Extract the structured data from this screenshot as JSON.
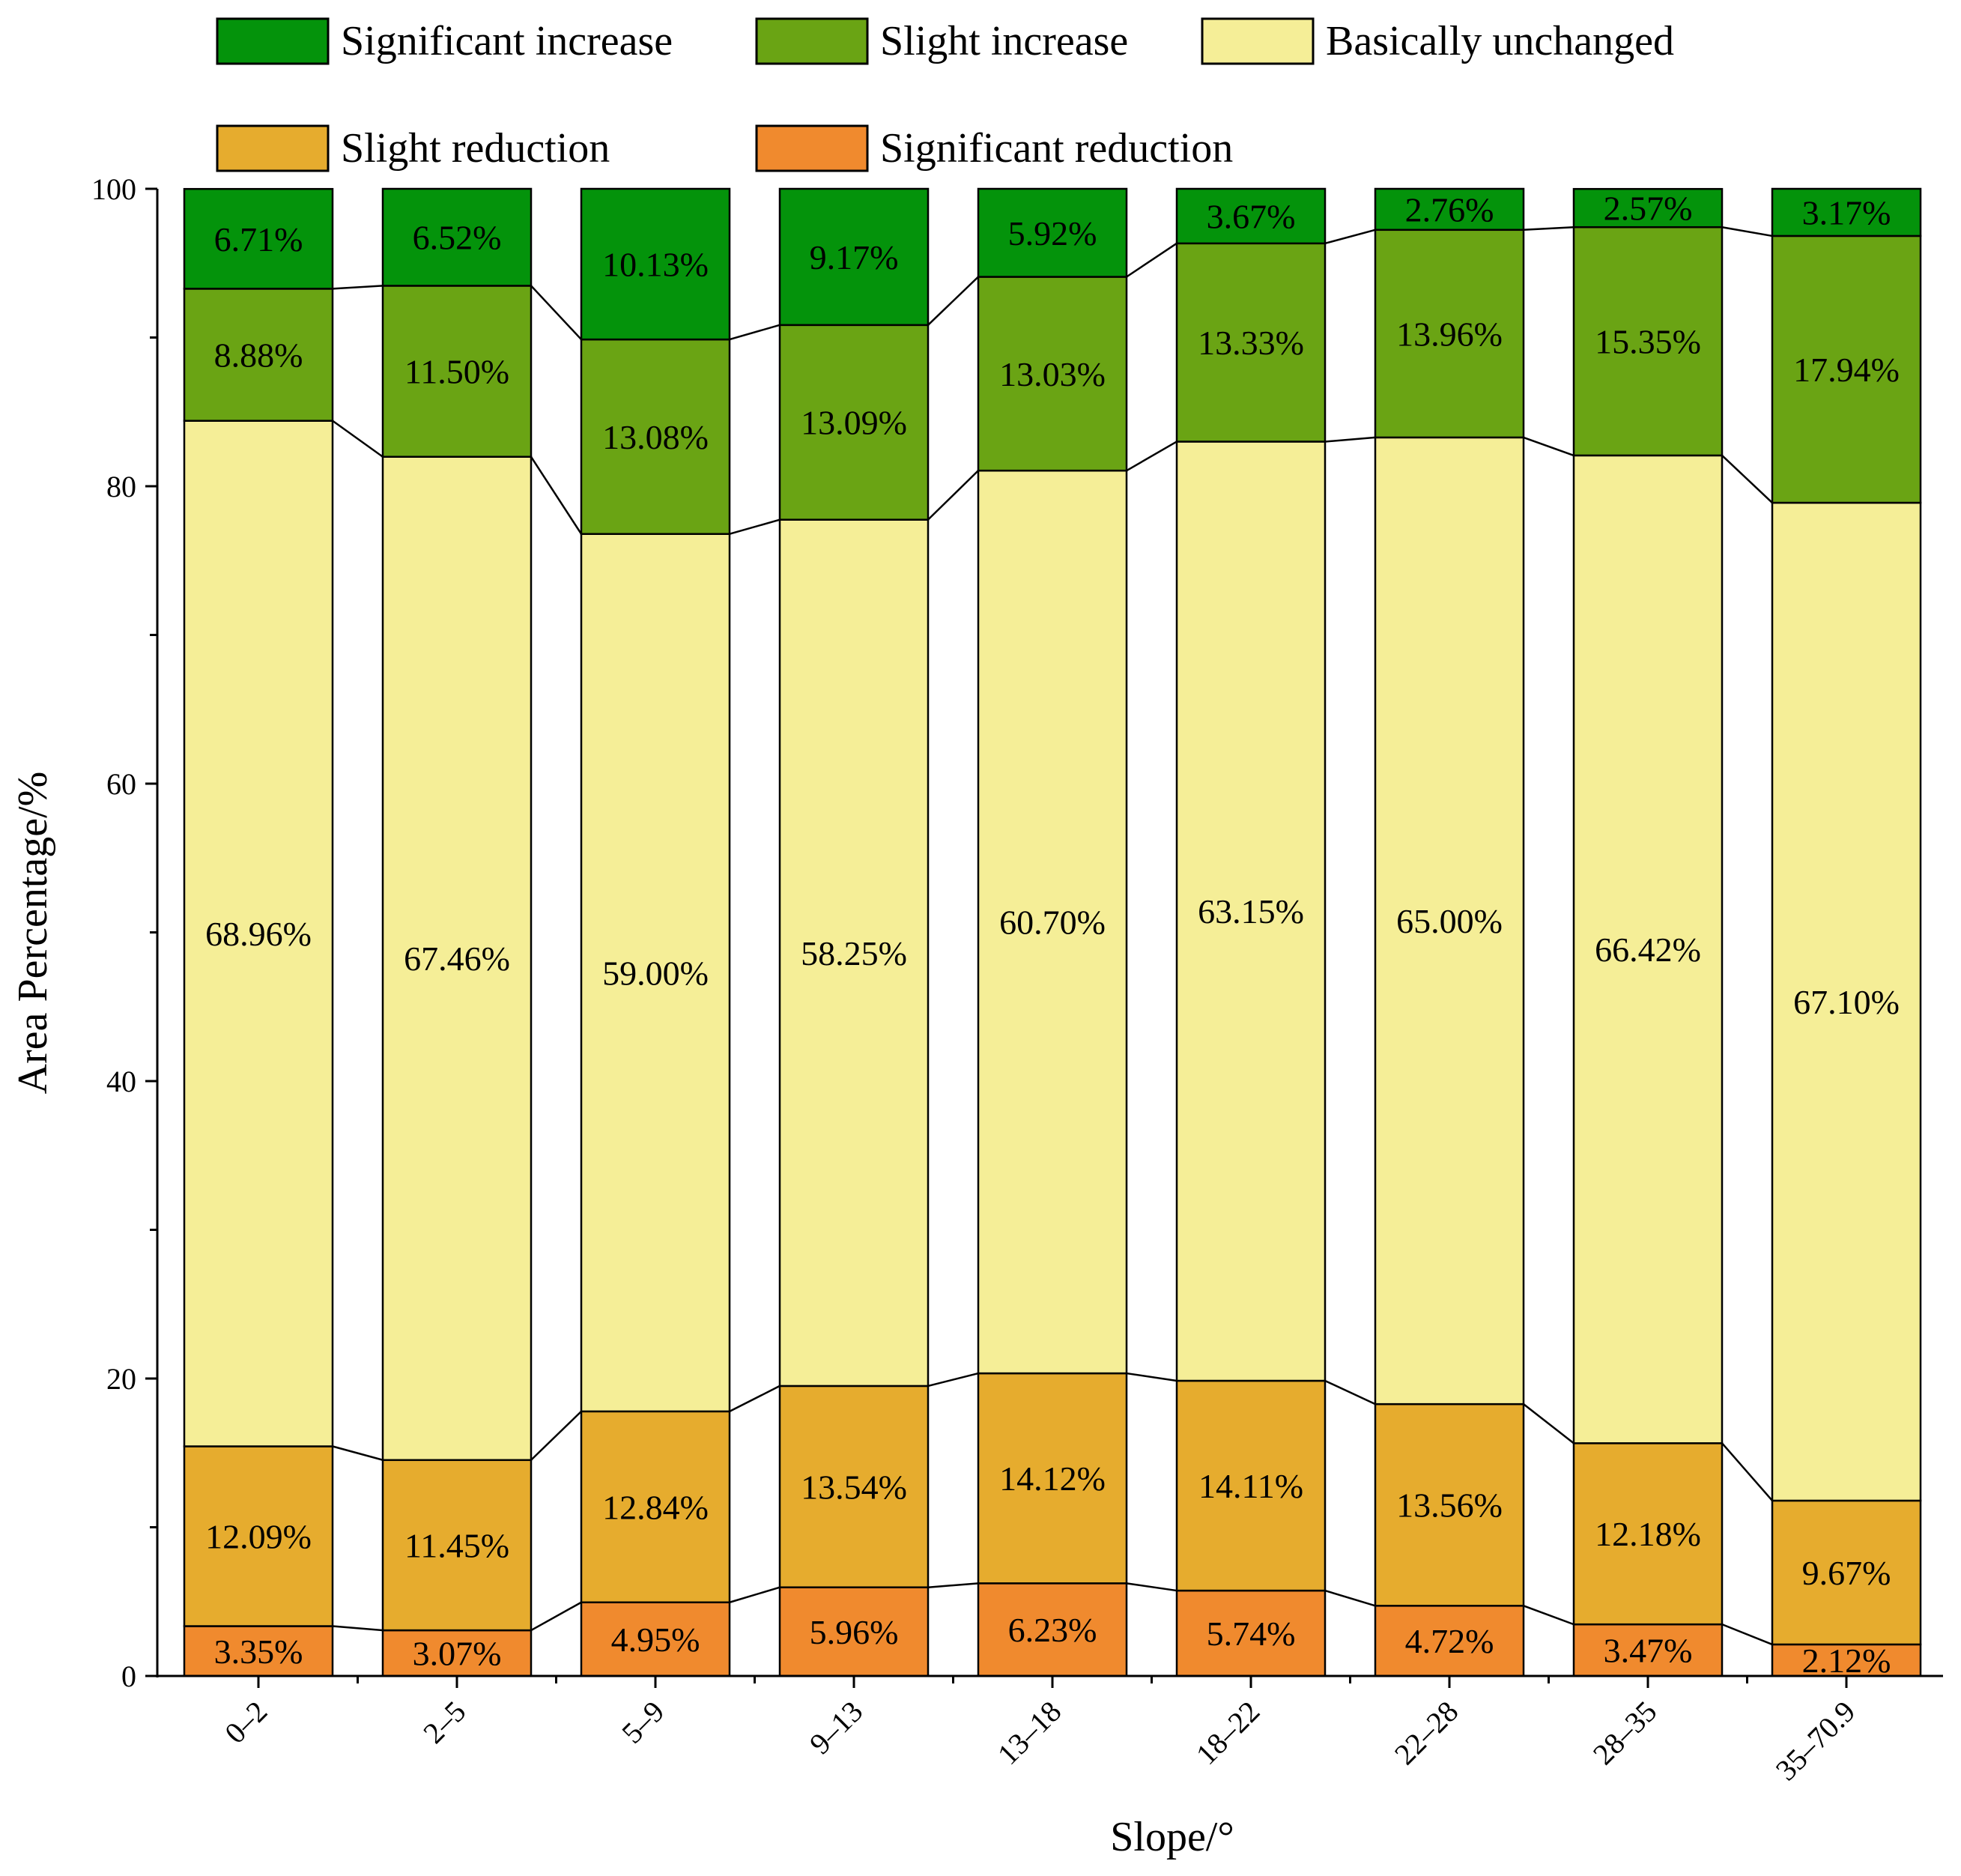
{
  "chart_data": {
    "type": "bar",
    "stacked": true,
    "title": "",
    "xlabel": "Slope/°",
    "ylabel": "Area Percentage/%",
    "ylim": [
      0,
      100
    ],
    "yticks": [
      "0",
      "20",
      "40",
      "60",
      "80",
      "100"
    ],
    "grid": false,
    "legend_position": "top",
    "categories": [
      "0–2",
      "2–5",
      "5–9",
      "9–13",
      "13–18",
      "18–22",
      "22–28",
      "28–35",
      "35–70.9"
    ],
    "series": [
      {
        "name": "Significant reduction",
        "color": "#F08A2E",
        "values": [
          3.35,
          3.07,
          4.95,
          5.96,
          6.23,
          5.74,
          4.72,
          3.47,
          2.12
        ],
        "labels": [
          "3.35%",
          "3.07%",
          "4.95%",
          "5.96%",
          "6.23%",
          "5.74%",
          "4.72%",
          "3.47%",
          "2.12%"
        ]
      },
      {
        "name": "Slight reduction",
        "color": "#E6AC2E",
        "values": [
          12.09,
          11.45,
          12.84,
          13.54,
          14.12,
          14.11,
          13.56,
          12.18,
          9.67
        ],
        "labels": [
          "12.09%",
          "11.45%",
          "12.84%",
          "13.54%",
          "14.12%",
          "14.11%",
          "13.56%",
          "12.18%",
          "9.67%"
        ]
      },
      {
        "name": "Basically unchanged",
        "color": "#F5EE97",
        "values": [
          68.96,
          67.46,
          59.0,
          58.25,
          60.7,
          63.15,
          65.0,
          66.42,
          67.1
        ],
        "labels": [
          "68.96%",
          "67.46%",
          "59.00%",
          "58.25%",
          "60.70%",
          "63.15%",
          "65.00%",
          "66.42%",
          "67.10%"
        ]
      },
      {
        "name": "Slight increase",
        "color": "#6AA414",
        "values": [
          8.88,
          11.5,
          13.08,
          13.09,
          13.03,
          13.33,
          13.96,
          15.35,
          17.94
        ],
        "labels": [
          "8.88%",
          "11.50%",
          "13.08%",
          "13.09%",
          "13.03%",
          "13.33%",
          "13.96%",
          "15.35%",
          "17.94%"
        ]
      },
      {
        "name": "Significant increase",
        "color": "#04930B",
        "values": [
          6.71,
          6.52,
          10.13,
          9.17,
          5.92,
          3.67,
          2.76,
          2.57,
          3.17
        ],
        "labels": [
          "6.71%",
          "6.52%",
          "10.13%",
          "9.17%",
          "5.92%",
          "3.67%",
          "2.76%",
          "2.57%",
          "3.17%"
        ]
      }
    ],
    "legend_order": [
      "Significant increase",
      "Slight increase",
      "Basically unchanged",
      "Slight reduction",
      "Significant reduction"
    ]
  }
}
